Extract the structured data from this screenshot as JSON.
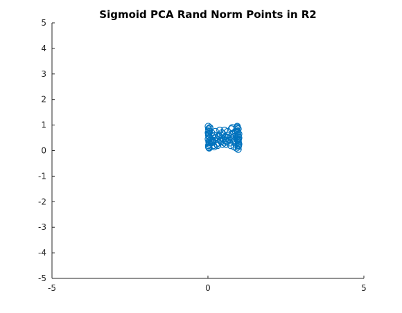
{
  "chart_data": {
    "type": "scatter",
    "title": "Sigmoid PCA Rand Norm Points in R2",
    "xlabel": "",
    "ylabel": "",
    "xlim": [
      -5,
      5
    ],
    "ylim": [
      -5,
      5
    ],
    "x_ticks": [
      "-5",
      "0",
      "5"
    ],
    "y_ticks": [
      "5",
      "4",
      "3",
      "2",
      "1",
      "0",
      "-1",
      "-2",
      "-3",
      "-4",
      "-5"
    ],
    "grid": false,
    "marker": "open-circle",
    "color": "#0072BD",
    "series": [
      {
        "x": [
          0.01,
          0.02,
          0.03,
          0.02,
          0.04,
          0.01,
          0.03,
          0.05,
          0.02,
          0.04,
          0.06,
          0.03,
          0.01,
          0.02,
          0.05,
          0.07,
          0.04,
          0.02,
          0.03,
          0.06,
          0.1,
          0.14,
          0.18,
          0.12,
          0.16,
          0.2,
          0.22,
          0.15,
          0.25,
          0.28,
          0.24,
          0.3,
          0.33,
          0.35,
          0.31,
          0.38,
          0.4,
          0.36,
          0.42,
          0.45,
          0.47,
          0.44,
          0.5,
          0.52,
          0.48,
          0.55,
          0.57,
          0.53,
          0.6,
          0.62,
          0.58,
          0.65,
          0.67,
          0.63,
          0.7,
          0.72,
          0.68,
          0.75,
          0.77,
          0.73,
          0.8,
          0.82,
          0.78,
          0.85,
          0.84,
          0.88,
          0.86,
          0.9,
          0.89,
          0.92,
          0.94,
          0.91,
          0.95,
          0.97,
          0.93,
          0.96,
          0.98,
          0.99,
          0.97,
          0.96,
          0.98,
          0.95,
          0.99,
          0.97,
          0.94,
          0.96,
          0.98,
          0.99,
          0.93,
          0.97
        ],
        "y": [
          0.95,
          0.85,
          0.75,
          0.65,
          0.55,
          0.45,
          0.35,
          0.25,
          0.15,
          0.1,
          0.9,
          0.8,
          0.7,
          0.6,
          0.5,
          0.4,
          0.3,
          0.2,
          0.12,
          0.88,
          0.3,
          0.55,
          0.2,
          0.7,
          0.4,
          0.15,
          0.6,
          0.35,
          0.5,
          0.25,
          0.75,
          0.45,
          0.3,
          0.6,
          0.2,
          0.8,
          0.4,
          0.55,
          0.35,
          0.7,
          0.25,
          0.5,
          0.45,
          0.3,
          0.65,
          0.4,
          0.55,
          0.8,
          0.35,
          0.5,
          0.25,
          0.6,
          0.45,
          0.75,
          0.3,
          0.55,
          0.4,
          0.85,
          0.5,
          0.2,
          0.65,
          0.35,
          0.9,
          0.55,
          0.15,
          0.75,
          0.4,
          0.6,
          0.25,
          0.8,
          0.45,
          0.1,
          0.7,
          0.35,
          0.92,
          0.55,
          0.2,
          0.65,
          0.85,
          0.4,
          0.3,
          0.75,
          0.5,
          0.15,
          0.95,
          0.6,
          0.45,
          0.25,
          0.88,
          0.05
        ]
      }
    ]
  }
}
